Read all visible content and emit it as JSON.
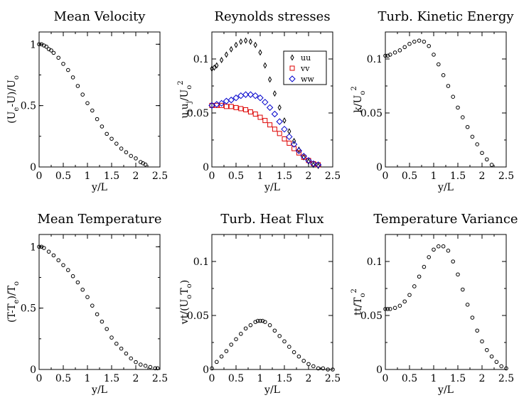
{
  "chart_data": [
    {
      "type": "scatter",
      "title": "Mean Velocity",
      "xlabel": "y/L",
      "ylabel": {
        "parts": [
          "(U",
          "e",
          "-U)/U",
          "o"
        ],
        "sub": [
          false,
          true,
          false,
          true
        ]
      },
      "xlim": [
        0,
        2.5
      ],
      "ylim": [
        0,
        1.1
      ],
      "xticks": [
        0,
        0.5,
        1,
        1.5,
        2,
        2.5
      ],
      "xtick_labels": [
        "0",
        "0.5",
        "1",
        "1.5",
        "2",
        "2.5"
      ],
      "yticks": [
        0,
        0.5,
        1
      ],
      "ytick_labels": [
        "0",
        "0.5",
        "1"
      ],
      "grid": false,
      "series": [
        {
          "marker": "circle",
          "color": "#000000",
          "x": [
            0,
            0.05,
            0.1,
            0.15,
            0.2,
            0.25,
            0.3,
            0.4,
            0.5,
            0.6,
            0.7,
            0.8,
            0.9,
            1.0,
            1.1,
            1.2,
            1.3,
            1.4,
            1.5,
            1.6,
            1.7,
            1.8,
            1.9,
            2.0,
            2.1,
            2.15,
            2.2
          ],
          "y": [
            1.0,
            1.0,
            0.99,
            0.98,
            0.96,
            0.95,
            0.93,
            0.89,
            0.84,
            0.79,
            0.73,
            0.66,
            0.59,
            0.52,
            0.46,
            0.39,
            0.33,
            0.27,
            0.23,
            0.19,
            0.15,
            0.12,
            0.09,
            0.07,
            0.04,
            0.03,
            0.02
          ]
        }
      ]
    },
    {
      "type": "scatter",
      "title": "Reynolds stresses",
      "xlabel": "y/L",
      "ylabel": {
        "parts": [
          "u",
          "i",
          "u",
          "j",
          "/U",
          "o",
          "2"
        ],
        "sub": [
          false,
          true,
          false,
          true,
          false,
          true,
          "sup"
        ]
      },
      "xlim": [
        0,
        2.5
      ],
      "ylim": [
        0,
        0.125
      ],
      "xticks": [
        0,
        0.5,
        1,
        1.5,
        2,
        2.5
      ],
      "xtick_labels": [
        "0",
        "0.5",
        "1",
        "1.5",
        "2",
        "2.5"
      ],
      "yticks": [
        0,
        0.05,
        0.1
      ],
      "ytick_labels": [
        "0",
        "0.05",
        "0.1"
      ],
      "grid": false,
      "legend": {
        "position": "top-right",
        "entries": [
          "uu",
          "vv",
          "ww"
        ]
      },
      "series": [
        {
          "name": "uu",
          "marker": "diamond-small",
          "color": "#000000",
          "x": [
            0,
            0.05,
            0.1,
            0.2,
            0.3,
            0.4,
            0.5,
            0.6,
            0.7,
            0.8,
            0.9,
            1.0,
            1.1,
            1.2,
            1.3,
            1.4,
            1.5,
            1.6,
            1.7,
            1.8,
            1.9,
            2.0,
            2.1,
            2.2
          ],
          "y": [
            0.091,
            0.092,
            0.094,
            0.099,
            0.104,
            0.109,
            0.113,
            0.116,
            0.117,
            0.116,
            0.113,
            0.106,
            0.094,
            0.081,
            0.068,
            0.055,
            0.043,
            0.033,
            0.024,
            0.016,
            0.009,
            0.005,
            0.002,
            0.001
          ]
        },
        {
          "name": "vv",
          "marker": "square",
          "color": "#dd0000",
          "x": [
            0,
            0.1,
            0.2,
            0.3,
            0.4,
            0.5,
            0.6,
            0.7,
            0.8,
            0.9,
            1.0,
            1.1,
            1.2,
            1.3,
            1.4,
            1.5,
            1.6,
            1.7,
            1.8,
            1.9,
            2.0,
            2.1,
            2.2
          ],
          "y": [
            0.057,
            0.057,
            0.057,
            0.056,
            0.056,
            0.055,
            0.054,
            0.053,
            0.051,
            0.049,
            0.046,
            0.043,
            0.039,
            0.035,
            0.031,
            0.026,
            0.022,
            0.017,
            0.013,
            0.009,
            0.006,
            0.003,
            0.002
          ]
        },
        {
          "name": "ww",
          "marker": "diamond",
          "color": "#0000cc",
          "x": [
            0,
            0.1,
            0.2,
            0.3,
            0.4,
            0.5,
            0.6,
            0.7,
            0.8,
            0.9,
            1.0,
            1.1,
            1.2,
            1.3,
            1.4,
            1.5,
            1.6,
            1.7,
            1.8,
            1.9,
            2.0,
            2.1,
            2.2
          ],
          "y": [
            0.057,
            0.058,
            0.059,
            0.061,
            0.062,
            0.064,
            0.066,
            0.067,
            0.067,
            0.066,
            0.064,
            0.06,
            0.055,
            0.049,
            0.042,
            0.035,
            0.028,
            0.021,
            0.015,
            0.01,
            0.006,
            0.003,
            0.002
          ]
        }
      ]
    },
    {
      "type": "scatter",
      "title": "Turb. Kinetic Energy",
      "xlabel": "y/L",
      "ylabel": {
        "parts": [
          "k/U",
          "o",
          "2"
        ],
        "sub": [
          false,
          true,
          "sup"
        ]
      },
      "xlim": [
        0,
        2.5
      ],
      "ylim": [
        0,
        0.125
      ],
      "xticks": [
        0,
        0.5,
        1,
        1.5,
        2,
        2.5
      ],
      "xtick_labels": [
        "0",
        "0.5",
        "1",
        "1.5",
        "2",
        "2.5"
      ],
      "yticks": [
        0,
        0.05,
        0.1
      ],
      "ytick_labels": [
        "0",
        "0.05",
        "0.1"
      ],
      "grid": false,
      "series": [
        {
          "marker": "circle",
          "color": "#000000",
          "x": [
            0,
            0.05,
            0.1,
            0.2,
            0.3,
            0.4,
            0.5,
            0.6,
            0.7,
            0.8,
            0.9,
            1.0,
            1.1,
            1.2,
            1.3,
            1.4,
            1.5,
            1.6,
            1.7,
            1.8,
            1.9,
            2.0,
            2.1,
            2.2
          ],
          "y": [
            0.103,
            0.103,
            0.104,
            0.106,
            0.108,
            0.111,
            0.114,
            0.116,
            0.117,
            0.116,
            0.112,
            0.104,
            0.095,
            0.085,
            0.075,
            0.065,
            0.055,
            0.046,
            0.037,
            0.028,
            0.021,
            0.013,
            0.007,
            0.002
          ]
        }
      ]
    },
    {
      "type": "scatter",
      "title": "Mean Temperature",
      "xlabel": "y/L",
      "ylabel": {
        "parts": [
          "(T-T",
          "e",
          ")/T",
          "o"
        ],
        "sub": [
          false,
          true,
          false,
          true
        ]
      },
      "xlim": [
        0,
        2.5
      ],
      "ylim": [
        0,
        1.1
      ],
      "xticks": [
        0,
        0.5,
        1,
        1.5,
        2,
        2.5
      ],
      "xtick_labels": [
        "0",
        "0.5",
        "1",
        "1.5",
        "2",
        "2.5"
      ],
      "yticks": [
        0,
        0.5,
        1
      ],
      "ytick_labels": [
        "0",
        "0.5",
        "1"
      ],
      "grid": false,
      "series": [
        {
          "marker": "circle",
          "color": "#000000",
          "x": [
            0,
            0.05,
            0.1,
            0.2,
            0.3,
            0.4,
            0.5,
            0.6,
            0.7,
            0.8,
            0.9,
            1.0,
            1.1,
            1.2,
            1.3,
            1.4,
            1.5,
            1.6,
            1.7,
            1.8,
            1.9,
            2.0,
            2.1,
            2.2,
            2.3,
            2.4,
            2.45
          ],
          "y": [
            1.0,
            1.0,
            0.99,
            0.96,
            0.93,
            0.89,
            0.85,
            0.81,
            0.76,
            0.71,
            0.65,
            0.59,
            0.52,
            0.45,
            0.39,
            0.33,
            0.26,
            0.21,
            0.17,
            0.13,
            0.09,
            0.06,
            0.04,
            0.03,
            0.02,
            0.01,
            0.01
          ]
        }
      ]
    },
    {
      "type": "scatter",
      "title": "Turb. Heat Flux",
      "xlabel": "y/L",
      "ylabel": {
        "parts": [
          "vt/(U",
          "o",
          "T",
          "o",
          ")"
        ],
        "sub": [
          false,
          true,
          false,
          true,
          false
        ]
      },
      "xlim": [
        0,
        2.5
      ],
      "ylim": [
        0,
        0.125
      ],
      "xticks": [
        0,
        0.5,
        1,
        1.5,
        2,
        2.5
      ],
      "xtick_labels": [
        "0",
        "0.5",
        "1",
        "1.5",
        "2",
        "2.5"
      ],
      "yticks": [
        0,
        0.05,
        0.1
      ],
      "ytick_labels": [
        "0",
        "0.05",
        "0.1"
      ],
      "grid": false,
      "series": [
        {
          "marker": "circle",
          "color": "#000000",
          "x": [
            0,
            0.1,
            0.2,
            0.3,
            0.4,
            0.5,
            0.6,
            0.7,
            0.8,
            0.9,
            0.95,
            1.0,
            1.05,
            1.1,
            1.2,
            1.3,
            1.4,
            1.5,
            1.6,
            1.7,
            1.8,
            1.9,
            2.0,
            2.1,
            2.2,
            2.3,
            2.4,
            2.5
          ],
          "y": [
            0.001,
            0.007,
            0.012,
            0.017,
            0.023,
            0.028,
            0.033,
            0.038,
            0.041,
            0.044,
            0.045,
            0.045,
            0.045,
            0.044,
            0.041,
            0.036,
            0.031,
            0.026,
            0.021,
            0.016,
            0.012,
            0.008,
            0.005,
            0.003,
            0.001,
            0.001,
            0.0,
            0.0
          ]
        }
      ]
    },
    {
      "type": "scatter",
      "title": "Temperature Variance",
      "xlabel": "y/L",
      "ylabel": {
        "parts": [
          "tt/T",
          "o",
          "2"
        ],
        "sub": [
          false,
          true,
          "sup"
        ]
      },
      "xlim": [
        0,
        2.5
      ],
      "ylim": [
        0,
        0.125
      ],
      "xticks": [
        0,
        0.5,
        1,
        1.5,
        2,
        2.5
      ],
      "xtick_labels": [
        "0",
        "0.5",
        "1",
        "1.5",
        "2",
        "2.5"
      ],
      "yticks": [
        0,
        0.05,
        0.1
      ],
      "ytick_labels": [
        "0",
        "0.05",
        "0.1"
      ],
      "grid": false,
      "series": [
        {
          "marker": "circle",
          "color": "#000000",
          "x": [
            0,
            0.05,
            0.1,
            0.2,
            0.3,
            0.4,
            0.5,
            0.6,
            0.7,
            0.8,
            0.9,
            1.0,
            1.1,
            1.2,
            1.3,
            1.4,
            1.5,
            1.6,
            1.7,
            1.8,
            1.9,
            2.0,
            2.1,
            2.2,
            2.3,
            2.4,
            2.5
          ],
          "y": [
            0.056,
            0.056,
            0.056,
            0.057,
            0.059,
            0.063,
            0.069,
            0.077,
            0.086,
            0.095,
            0.104,
            0.111,
            0.114,
            0.114,
            0.11,
            0.1,
            0.088,
            0.074,
            0.06,
            0.048,
            0.036,
            0.026,
            0.018,
            0.012,
            0.007,
            0.003,
            0.001
          ]
        }
      ]
    }
  ]
}
